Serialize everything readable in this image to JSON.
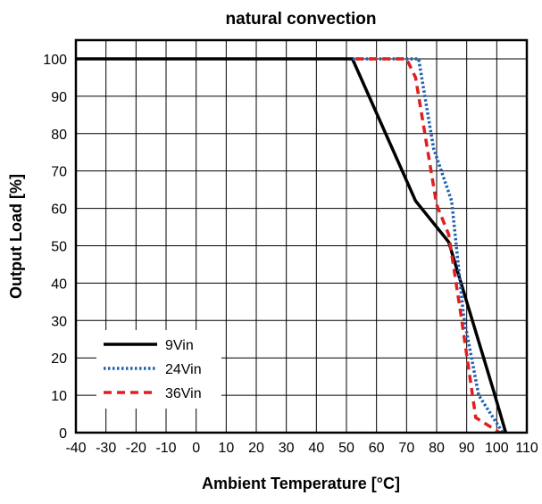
{
  "chart_data": {
    "type": "line",
    "title": "natural convection",
    "xlabel": "Ambient Temperature [°C]",
    "ylabel": "Output Load [%]",
    "xlim": [
      -40,
      110
    ],
    "ylim": [
      0,
      105
    ],
    "xticks": [
      -40,
      -30,
      -20,
      -10,
      0,
      10,
      20,
      30,
      40,
      50,
      60,
      70,
      80,
      90,
      100,
      110
    ],
    "yticks": [
      0,
      10,
      20,
      30,
      40,
      50,
      60,
      70,
      80,
      90,
      100
    ],
    "grid": true,
    "legend_position": "bottom-left",
    "series": [
      {
        "name": "9Vin",
        "color": "#000000",
        "style": "solid",
        "points": [
          [
            -40,
            100
          ],
          [
            52,
            100
          ],
          [
            73,
            62
          ],
          [
            84,
            51
          ],
          [
            99,
            11
          ],
          [
            103,
            0
          ]
        ]
      },
      {
        "name": "24Vin",
        "color": "#1f5fb0",
        "style": "dotted",
        "points": [
          [
            52,
            100
          ],
          [
            74,
            100
          ],
          [
            79,
            76
          ],
          [
            85,
            62
          ],
          [
            89,
            31
          ],
          [
            94,
            10
          ],
          [
            102,
            0
          ]
        ]
      },
      {
        "name": "36Vin",
        "color": "#e02020",
        "style": "dashed",
        "points": [
          [
            53,
            100
          ],
          [
            70,
            100
          ],
          [
            73,
            95
          ],
          [
            80,
            61
          ],
          [
            84,
            53
          ],
          [
            88,
            32
          ],
          [
            93,
            4
          ],
          [
            101,
            0
          ]
        ]
      }
    ]
  }
}
